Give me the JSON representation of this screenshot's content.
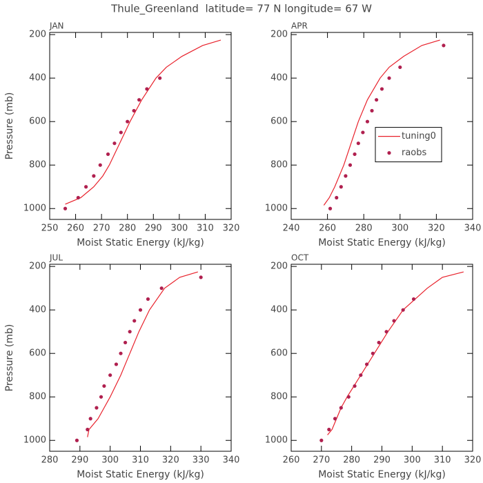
{
  "title": "Thule_Greenland  latitude= 77 N longitude= 67 W",
  "chart_data": [
    {
      "type": "line",
      "title": "JAN",
      "xlabel": "Moist Static Energy (kJ/kg)",
      "ylabel": "Pressure (mb)",
      "xlim": [
        250,
        320
      ],
      "xticks": [
        250,
        260,
        270,
        280,
        290,
        300,
        310,
        320
      ],
      "ylim": [
        190,
        1050
      ],
      "y_inverted": true,
      "yticks": [
        200,
        400,
        600,
        800,
        1000
      ],
      "series": [
        {
          "style": "line",
          "color": "#e8202a",
          "x": [
            256,
            262,
            267,
            270.5,
            273,
            277,
            281,
            285.5,
            291,
            295,
            301,
            309,
            316
          ],
          "y": [
            980,
            950,
            900,
            850,
            800,
            700,
            600,
            500,
            400,
            350,
            300,
            250,
            225
          ]
        },
        {
          "style": "markers",
          "color": "#b0204f",
          "x": [
            256,
            261,
            264,
            267,
            269.5,
            272.5,
            275,
            277.5,
            280,
            282.5,
            284.5,
            287.5,
            292.5
          ],
          "y": [
            1000,
            950,
            900,
            850,
            800,
            750,
            700,
            650,
            600,
            550,
            500,
            450,
            400
          ]
        }
      ]
    },
    {
      "type": "line",
      "title": "APR",
      "xlabel": "Moist Static Energy (kJ/kg)",
      "xlim": [
        240,
        340
      ],
      "xticks": [
        240,
        260,
        280,
        300,
        320,
        340
      ],
      "ylim": [
        190,
        1050
      ],
      "y_inverted": true,
      "yticks": [
        200,
        400,
        600,
        800,
        1000
      ],
      "legend": "center right",
      "series": [
        {
          "name": "tuning0",
          "style": "line",
          "color": "#e8202a",
          "x": [
            258,
            261,
            264,
            269,
            273,
            277,
            282,
            289,
            294,
            302,
            312,
            322
          ],
          "y": [
            985,
            950,
            900,
            800,
            700,
            600,
            500,
            400,
            350,
            300,
            250,
            225
          ]
        },
        {
          "name": "raobs",
          "style": "markers",
          "color": "#b0204f",
          "x": [
            261.5,
            265,
            267.5,
            270,
            272.5,
            275,
            277,
            279.5,
            282,
            284.5,
            287,
            290,
            294,
            300,
            324
          ],
          "y": [
            1000,
            950,
            900,
            850,
            800,
            750,
            700,
            650,
            600,
            550,
            500,
            450,
            400,
            350,
            250
          ]
        }
      ]
    },
    {
      "type": "line",
      "title": "JUL",
      "xlabel": "Moist Static Energy (kJ/kg)",
      "ylabel": "Pressure (mb)",
      "xlim": [
        280,
        340
      ],
      "xticks": [
        280,
        290,
        300,
        310,
        320,
        330,
        340
      ],
      "ylim": [
        190,
        1050
      ],
      "y_inverted": true,
      "yticks": [
        200,
        400,
        600,
        800,
        1000
      ],
      "series": [
        {
          "style": "line",
          "color": "#e8202a",
          "x": [
            292.5,
            293,
            296,
            298,
            300,
            303.5,
            305,
            306.5,
            309.5,
            313,
            318,
            323,
            329
          ],
          "y": [
            985,
            950,
            900,
            850,
            800,
            700,
            650,
            600,
            500,
            400,
            300,
            250,
            225
          ]
        },
        {
          "style": "markers",
          "color": "#b0204f",
          "x": [
            289,
            292.5,
            293.5,
            295.5,
            297,
            298,
            300,
            302,
            303.5,
            305,
            306.5,
            308,
            310,
            312.5,
            317,
            330
          ],
          "y": [
            1000,
            950,
            900,
            850,
            800,
            750,
            700,
            650,
            600,
            550,
            500,
            450,
            400,
            350,
            300,
            250
          ]
        }
      ]
    },
    {
      "type": "line",
      "title": "OCT",
      "xlabel": "Moist Static Energy (kJ/kg)",
      "xlim": [
        260,
        320
      ],
      "xticks": [
        260,
        270,
        280,
        290,
        300,
        310,
        320
      ],
      "ylim": [
        190,
        1050
      ],
      "y_inverted": true,
      "yticks": [
        200,
        400,
        600,
        800,
        1000
      ],
      "series": [
        {
          "style": "line",
          "color": "#e8202a",
          "x": [
            272,
            273.5,
            275,
            276.5,
            278.5,
            283,
            287.5,
            292,
            297,
            301,
            305,
            310,
            317
          ],
          "y": [
            975,
            950,
            900,
            850,
            800,
            700,
            600,
            500,
            400,
            350,
            300,
            250,
            225
          ]
        },
        {
          "style": "markers",
          "color": "#b0204f",
          "x": [
            270,
            272.5,
            274.5,
            276.5,
            279,
            281,
            283,
            285,
            287,
            289,
            291.5,
            294,
            297,
            300.5
          ],
          "y": [
            1000,
            950,
            900,
            850,
            800,
            750,
            700,
            650,
            600,
            550,
            500,
            450,
            400,
            350
          ]
        }
      ]
    }
  ]
}
